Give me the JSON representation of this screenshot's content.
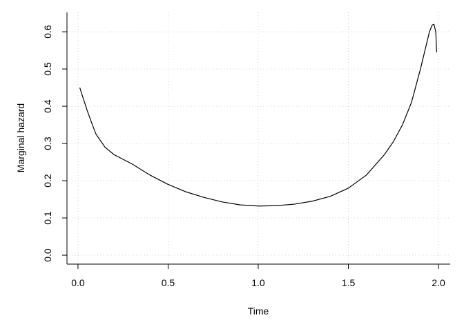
{
  "chart_data": {
    "type": "line",
    "xlabel": "Time",
    "ylabel": "Marginal hazard",
    "x": [
      0.01,
      0.03,
      0.05,
      0.08,
      0.1,
      0.15,
      0.2,
      0.3,
      0.4,
      0.5,
      0.6,
      0.7,
      0.8,
      0.9,
      1.0,
      1.1,
      1.2,
      1.3,
      1.4,
      1.5,
      1.6,
      1.7,
      1.75,
      1.8,
      1.85,
      1.9,
      1.93,
      1.95,
      1.965,
      1.975,
      1.985,
      1.99
    ],
    "series": [
      {
        "name": "hazard",
        "color": "#000000",
        "values": [
          0.45,
          0.42,
          0.39,
          0.35,
          0.325,
          0.29,
          0.27,
          0.245,
          0.215,
          0.19,
          0.17,
          0.155,
          0.143,
          0.135,
          0.132,
          0.133,
          0.137,
          0.145,
          0.158,
          0.18,
          0.215,
          0.27,
          0.305,
          0.35,
          0.41,
          0.5,
          0.56,
          0.6,
          0.618,
          0.62,
          0.6,
          0.545
        ]
      }
    ],
    "xlim": [
      -0.061,
      2.065
    ],
    "ylim": [
      -0.024,
      0.652
    ],
    "xticks": [
      {
        "value": 0,
        "label": "0.0"
      },
      0.5,
      {
        "value": 1,
        "label": "1.0"
      },
      1.5,
      {
        "value": 2,
        "label": "2.0"
      }
    ],
    "yticks": [
      {
        "value": 0,
        "label": "0.0"
      },
      0.1,
      0.2,
      0.3,
      0.4,
      0.5,
      0.6
    ],
    "grid": true
  }
}
